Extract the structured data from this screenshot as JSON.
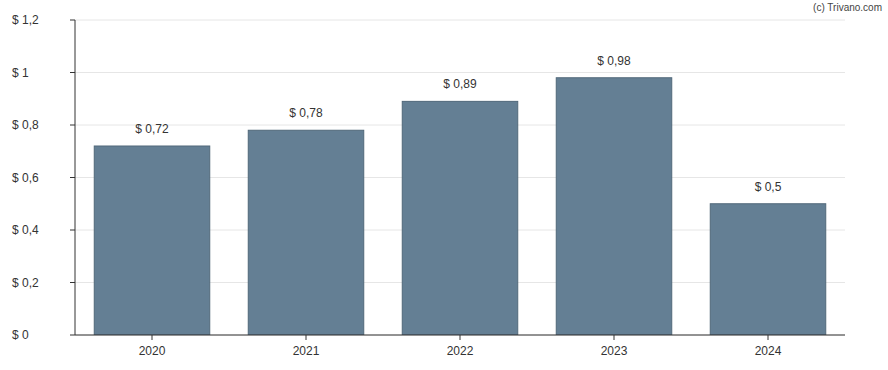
{
  "chart_data": {
    "type": "bar",
    "source": "(c) Trivano.com",
    "categories": [
      "2020",
      "2021",
      "2022",
      "2023",
      "2024"
    ],
    "values": [
      0.72,
      0.78,
      0.89,
      0.98,
      0.5
    ],
    "value_labels": [
      "$ 0,72",
      "$ 0,78",
      "$ 0,89",
      "$ 0,98",
      "$ 0,5"
    ],
    "color": "#647f94",
    "ylim": [
      0,
      1.2
    ],
    "yticks": [
      {
        "value": 0,
        "label": "$ 0"
      },
      {
        "value": 0.2,
        "label": "$ 0,2"
      },
      {
        "value": 0.4,
        "label": "$ 0,4"
      },
      {
        "value": 0.6,
        "label": "$ 0,6"
      },
      {
        "value": 0.8,
        "label": "$ 0,8"
      },
      {
        "value": 1,
        "label": "$ 1"
      },
      {
        "value": 1.2,
        "label": "$ 1,2"
      }
    ],
    "grid": true,
    "data_labels": true
  }
}
